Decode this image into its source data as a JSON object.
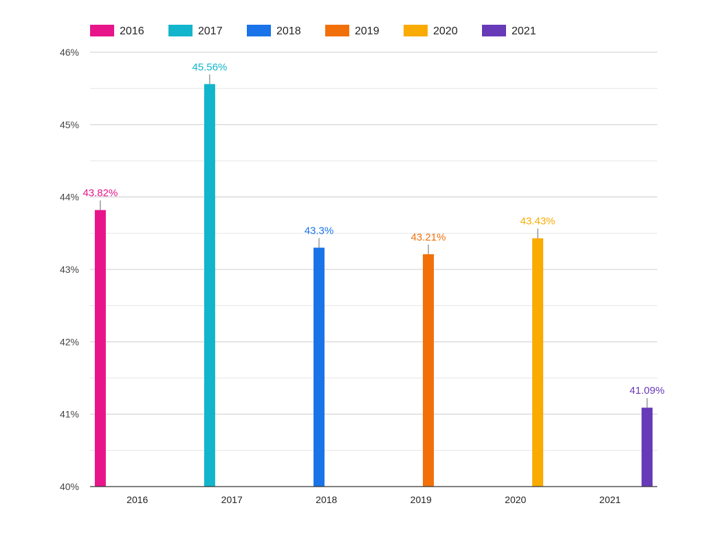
{
  "chart_data": {
    "type": "bar",
    "title": "",
    "xlabel": "",
    "ylabel": "",
    "categories": [
      "2016",
      "2017",
      "2018",
      "2019",
      "2020",
      "2021"
    ],
    "series": [
      {
        "name": "2016",
        "color": "#e8158a",
        "values": [
          43.82,
          null,
          null,
          null,
          null,
          null
        ],
        "label": "43.82%"
      },
      {
        "name": "2017",
        "color": "#12b5cb",
        "values": [
          null,
          45.56,
          null,
          null,
          null,
          null
        ],
        "label": "45.56%"
      },
      {
        "name": "2018",
        "color": "#1a73e8",
        "values": [
          null,
          null,
          43.3,
          null,
          null,
          null
        ],
        "label": "43.3%"
      },
      {
        "name": "2019",
        "color": "#f2700a",
        "values": [
          null,
          null,
          null,
          43.21,
          null,
          null
        ],
        "label": "43.21%"
      },
      {
        "name": "2020",
        "color": "#f9ab00",
        "values": [
          null,
          null,
          null,
          null,
          43.43,
          null
        ],
        "label": "43.43%"
      },
      {
        "name": "2021",
        "color": "#673ab7",
        "values": [
          null,
          null,
          null,
          null,
          null,
          41.09
        ],
        "label": "41.09%"
      }
    ],
    "ylim": [
      40,
      46
    ],
    "yticks": [
      40,
      41,
      42,
      43,
      44,
      45,
      46
    ],
    "ytick_labels": [
      "40%",
      "41%",
      "42%",
      "43%",
      "44%",
      "45%",
      "46%"
    ],
    "grid": true,
    "minor_grid": true,
    "legend": "top-left"
  }
}
